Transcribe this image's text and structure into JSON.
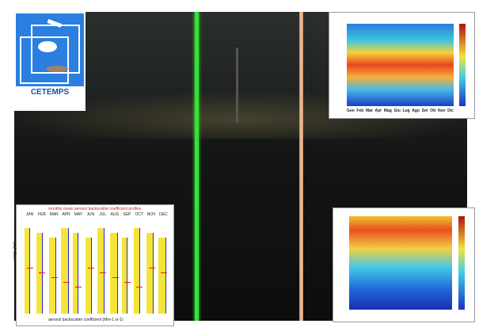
{
  "logo": {
    "title": "CETEMPS"
  },
  "inset_top_right": {
    "months": [
      "Gen",
      "Feb",
      "Mar",
      "Apr",
      "Mag",
      "Giu",
      "Lug",
      "Ago",
      "Set",
      "Ott",
      "Nov",
      "Dic"
    ]
  },
  "inset_bottom_left": {
    "title": "monthly mean aerosol backscatter coefficient profiles",
    "months": [
      "JAN",
      "FEB",
      "MAR",
      "APR",
      "MAY",
      "JUN",
      "JUL",
      "AUG",
      "SEP",
      "OCT",
      "NOV",
      "DEC"
    ],
    "y_label": "range (km)",
    "x_label": "aerosol backscatter coefficient (Mm-1 sr-1)"
  }
}
